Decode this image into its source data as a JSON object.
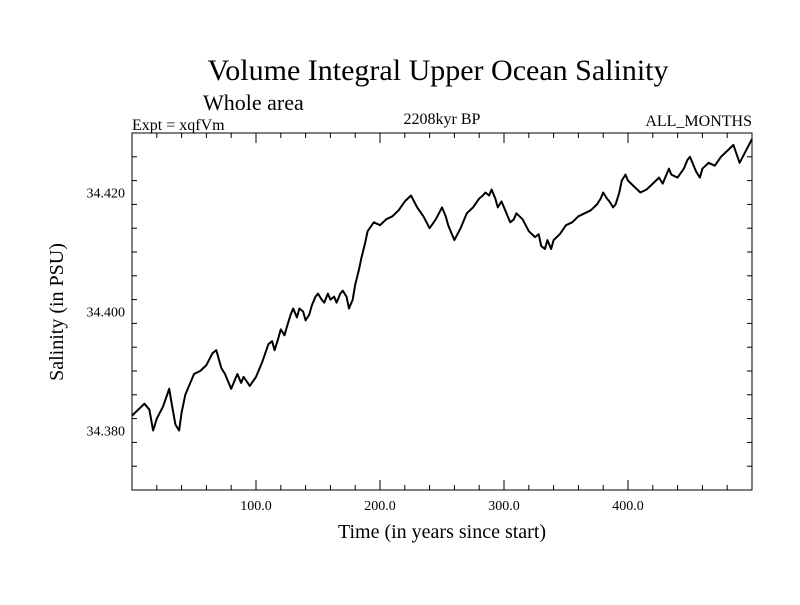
{
  "chart_data": {
    "type": "line",
    "title": "Volume Integral Upper Ocean Salinity",
    "subtitle": "Whole area",
    "header_left": "Expt = xqfVm",
    "header_center": "2208kyr BP",
    "header_right": "ALL_MONTHS",
    "xlabel": "Time (in years since start)",
    "ylabel": "Salinity (in PSU)",
    "xlim": [
      0,
      500
    ],
    "ylim": [
      34.37,
      34.43
    ],
    "x_ticks_labeled": [
      {
        "value": 100,
        "label": "100.0"
      },
      {
        "value": 200,
        "label": "200.0"
      },
      {
        "value": 300,
        "label": "300.0"
      },
      {
        "value": 400,
        "label": "400.0"
      }
    ],
    "y_ticks_labeled": [
      {
        "value": 34.38,
        "label": "34.380"
      },
      {
        "value": 34.4,
        "label": "34.400"
      },
      {
        "value": 34.42,
        "label": "34.420"
      }
    ],
    "x_minor_step": 20,
    "y_minor_step": 0.004,
    "series": [
      {
        "name": "Salinity",
        "color": "#000000",
        "x": [
          0,
          5,
          10,
          14,
          17,
          20,
          25,
          30,
          32,
          35,
          38,
          40,
          43,
          47,
          50,
          55,
          60,
          65,
          68,
          70,
          72,
          75,
          78,
          80,
          83,
          85,
          88,
          90,
          95,
          100,
          105,
          110,
          113,
          115,
          118,
          120,
          123,
          125,
          128,
          130,
          133,
          135,
          138,
          140,
          143,
          145,
          148,
          150,
          153,
          155,
          158,
          160,
          163,
          165,
          168,
          170,
          173,
          175,
          178,
          180,
          183,
          185,
          188,
          190,
          195,
          200,
          205,
          210,
          215,
          220,
          225,
          230,
          235,
          240,
          245,
          250,
          253,
          255,
          258,
          260,
          265,
          270,
          275,
          280,
          283,
          285,
          288,
          290,
          293,
          295,
          298,
          300,
          303,
          305,
          308,
          310,
          315,
          320,
          325,
          328,
          330,
          333,
          335,
          338,
          340,
          345,
          350,
          355,
          360,
          365,
          370,
          375,
          378,
          380,
          383,
          385,
          388,
          390,
          393,
          395,
          398,
          400,
          405,
          410,
          415,
          420,
          425,
          428,
          430,
          433,
          435,
          440,
          445,
          448,
          450,
          453,
          455,
          458,
          460,
          465,
          470,
          475,
          480,
          485,
          490,
          495,
          500
        ],
        "values": [
          34.3825,
          34.3835,
          34.3845,
          34.3835,
          34.38,
          34.382,
          34.384,
          34.387,
          34.3845,
          34.381,
          34.38,
          34.383,
          34.386,
          34.388,
          34.3895,
          34.39,
          34.391,
          34.393,
          34.3935,
          34.392,
          34.3905,
          34.3895,
          34.388,
          34.387,
          34.3885,
          34.3895,
          34.388,
          34.389,
          34.3875,
          34.389,
          34.3915,
          34.3945,
          34.395,
          34.3935,
          34.3955,
          34.397,
          34.396,
          34.3975,
          34.3995,
          34.4005,
          34.399,
          34.4005,
          34.4,
          34.3985,
          34.3995,
          34.401,
          34.4025,
          34.403,
          34.402,
          34.4015,
          34.403,
          34.402,
          34.4025,
          34.4015,
          34.403,
          34.4035,
          34.4025,
          34.4005,
          34.402,
          34.4045,
          34.407,
          34.409,
          34.4115,
          34.4135,
          34.415,
          34.4145,
          34.4155,
          34.416,
          34.417,
          34.4185,
          34.4195,
          34.4175,
          34.416,
          34.414,
          34.4155,
          34.4175,
          34.416,
          34.4145,
          34.413,
          34.412,
          34.414,
          34.4165,
          34.4175,
          34.419,
          34.4195,
          34.42,
          34.4195,
          34.4205,
          34.419,
          34.4175,
          34.4185,
          34.4175,
          34.416,
          34.415,
          34.4155,
          34.4165,
          34.4155,
          34.4135,
          34.4125,
          34.413,
          34.411,
          34.4105,
          34.412,
          34.4105,
          34.412,
          34.413,
          34.4145,
          34.415,
          34.416,
          34.4165,
          34.417,
          34.418,
          34.419,
          34.42,
          34.419,
          34.4185,
          34.4175,
          34.418,
          34.42,
          34.422,
          34.423,
          34.422,
          34.421,
          34.42,
          34.4205,
          34.4215,
          34.4225,
          34.4215,
          34.4225,
          34.424,
          34.423,
          34.4225,
          34.424,
          34.4255,
          34.426,
          34.4245,
          34.4235,
          34.4225,
          34.424,
          34.425,
          34.4245,
          34.426,
          34.427,
          34.428,
          34.425,
          34.427,
          34.429
        ]
      }
    ]
  }
}
